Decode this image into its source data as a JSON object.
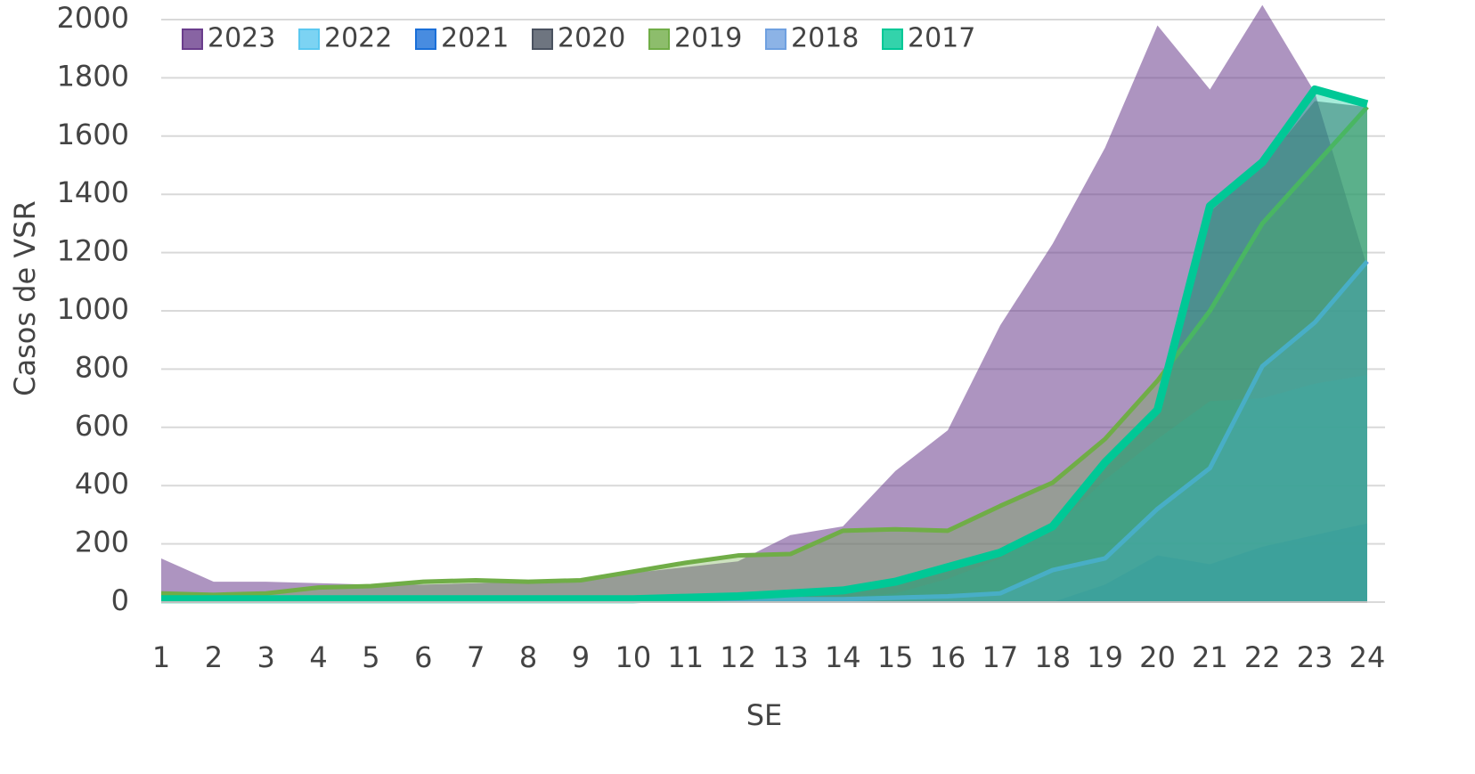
{
  "chart_data": {
    "type": "area",
    "x_label": "SE",
    "y_label": "Casos de VSR",
    "categories": [
      1,
      2,
      3,
      4,
      5,
      6,
      7,
      8,
      9,
      10,
      11,
      12,
      13,
      14,
      15,
      16,
      17,
      18,
      19,
      20,
      21,
      22,
      23,
      24
    ],
    "ylim": [
      0,
      2000
    ],
    "yticks": [
      0,
      200,
      400,
      600,
      800,
      1000,
      1200,
      1400,
      1600,
      1800,
      2000
    ],
    "grid": true,
    "legend": "top",
    "series": [
      {
        "name": "2023",
        "color": "#6a3d8c",
        "values": [
          150,
          70,
          70,
          65,
          60,
          60,
          65,
          70,
          80,
          100,
          120,
          140,
          230,
          260,
          450,
          590,
          950,
          1230,
          1560,
          1980,
          1760,
          2050,
          1750,
          1150
        ]
      },
      {
        "name": "2022",
        "color": "#5bc8f0",
        "values": [
          10,
          10,
          10,
          10,
          10,
          10,
          10,
          10,
          10,
          10,
          10,
          10,
          10,
          15,
          30,
          80,
          150,
          250,
          420,
          560,
          690,
          700,
          750,
          780
        ]
      },
      {
        "name": "2021",
        "color": "#1a6fd8",
        "values": [
          0,
          0,
          0,
          0,
          0,
          0,
          0,
          0,
          0,
          0,
          0,
          0,
          0,
          0,
          0,
          0,
          0,
          0,
          60,
          160,
          130,
          190,
          230,
          270
        ]
      },
      {
        "name": "2020",
        "color": "#4a5260",
        "values": [
          10,
          10,
          10,
          10,
          10,
          10,
          10,
          10,
          10,
          10,
          10,
          15,
          25,
          35,
          60,
          110,
          160,
          250,
          470,
          650,
          1340,
          1500,
          1720,
          1700
        ]
      },
      {
        "name": "2019",
        "color": "#70ad47",
        "line": true,
        "values": [
          30,
          25,
          30,
          50,
          55,
          70,
          75,
          70,
          75,
          105,
          135,
          160,
          165,
          245,
          250,
          245,
          330,
          410,
          560,
          760,
          1000,
          1300,
          1500,
          1700
        ]
      },
      {
        "name": "2018",
        "color": "#6fa0e0",
        "line": true,
        "values": [
          10,
          10,
          10,
          10,
          10,
          10,
          10,
          10,
          10,
          10,
          10,
          10,
          10,
          10,
          15,
          20,
          30,
          110,
          150,
          320,
          460,
          810,
          960,
          1170
        ]
      },
      {
        "name": "2017",
        "color": "#00c896",
        "line": true,
        "values": [
          10,
          10,
          10,
          10,
          10,
          10,
          10,
          10,
          10,
          10,
          15,
          20,
          30,
          40,
          70,
          120,
          170,
          260,
          480,
          660,
          1360,
          1510,
          1760,
          1710
        ]
      }
    ]
  }
}
